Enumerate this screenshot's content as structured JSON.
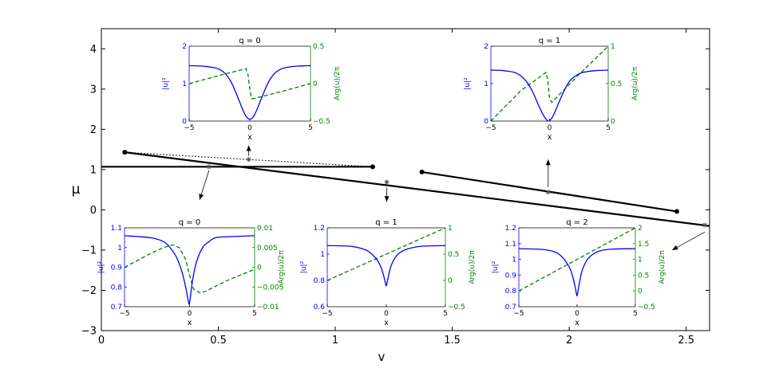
{
  "figure": {
    "ylabel": "μ",
    "xlabel": "v"
  },
  "chart_data": [
    {
      "id": "main",
      "type": "line",
      "xlabel": "v",
      "ylabel": "μ",
      "xlim": [
        0,
        2.6
      ],
      "ylim": [
        -3,
        4.5
      ],
      "xticks": [
        0,
        0.5,
        1,
        1.5,
        2,
        2.5
      ],
      "xtick_labels": [
        "0",
        "0.5",
        "1",
        "1.5",
        "2",
        "2.5"
      ],
      "yticks": [
        -3,
        -2,
        -1,
        0,
        1,
        2,
        3,
        4
      ],
      "ytick_labels": [
        "−3",
        "−2",
        "−1",
        "0",
        "1",
        "2",
        "3",
        "4"
      ],
      "grid": false,
      "series": [
        {
          "style": "solid",
          "color": "#000000",
          "points": [
            [
              0,
              1.07
            ],
            [
              1.16,
              1.07
            ]
          ],
          "end_markers": [
            [
              1.16,
              1.07
            ]
          ]
        },
        {
          "style": "solid",
          "color": "#000000",
          "points": [
            [
              0.1,
              1.43
            ],
            [
              2.6,
              -0.4
            ]
          ],
          "end_markers": [
            [
              0.1,
              1.43
            ]
          ]
        },
        {
          "style": "solid",
          "color": "#000000",
          "points": [
            [
              1.37,
              0.94
            ],
            [
              2.46,
              -0.04
            ]
          ],
          "end_markers": [
            [
              1.37,
              0.94
            ],
            [
              2.46,
              -0.04
            ]
          ]
        },
        {
          "style": "dotted",
          "color": "#000000",
          "points": [
            [
              0.1,
              1.43
            ],
            [
              0.63,
              1.25
            ],
            [
              1.16,
              1.07
            ]
          ]
        },
        {
          "style": "dotted",
          "color": "#000000",
          "points": [
            [
              1.37,
              0.94
            ],
            [
              1.91,
              0.44
            ],
            [
              2.46,
              -0.04
            ]
          ]
        }
      ],
      "star_markers": [
        [
          0.46,
          1.07
        ],
        [
          0.63,
          1.25
        ],
        [
          1.22,
          0.69
        ],
        [
          1.91,
          0.44
        ],
        [
          2.58,
          -0.38
        ]
      ],
      "arrows": [
        {
          "from": [
            0.46,
            0.98
          ],
          "to": [
            0.42,
            0.25
          ]
        },
        {
          "from": [
            0.63,
            1.34
          ],
          "to": [
            0.63,
            1.6
          ]
        },
        {
          "from": [
            1.22,
            0.55
          ],
          "to": [
            1.22,
            0.2
          ]
        },
        {
          "from": [
            1.91,
            0.57
          ],
          "to": [
            1.91,
            1.25
          ]
        },
        {
          "from": [
            2.58,
            -0.55
          ],
          "to": [
            2.44,
            -1.0
          ]
        }
      ]
    },
    {
      "id": "inset-top-left",
      "type": "line",
      "title": "q = 0",
      "xlabel": "x",
      "ylabel_left": "|u|²",
      "ylabel_right": "Arg(u)/2π",
      "xlim": [
        -5,
        5
      ],
      "ylim_left": [
        0,
        2
      ],
      "ylim_right": [
        -0.5,
        0.5
      ],
      "xticks": [
        -5,
        0,
        5
      ],
      "xtick_labels": [
        "−5",
        "0",
        "5"
      ],
      "yticks_left": [
        0,
        1,
        2
      ],
      "ytick_left_labels": [
        "0",
        "1",
        "2"
      ],
      "yticks_right": [
        -0.5,
        0,
        0.5
      ],
      "ytick_right_labels": [
        "−0.5",
        "0",
        "0.5"
      ],
      "amplitude": {
        "color": "#0000ff",
        "x": [
          -5,
          -4,
          -3,
          -2.5,
          -2,
          -1.5,
          -1,
          -0.6,
          -0.3,
          0,
          0.3,
          0.6,
          1,
          1.5,
          2,
          2.5,
          3,
          4,
          5
        ],
        "y": [
          1.48,
          1.47,
          1.43,
          1.38,
          1.26,
          1.02,
          0.64,
          0.32,
          0.12,
          0.05,
          0.12,
          0.32,
          0.64,
          1.02,
          1.26,
          1.38,
          1.43,
          1.47,
          1.48
        ]
      },
      "phase": {
        "color": "#008000",
        "style": "dashed",
        "x": [
          -5,
          -2.5,
          -0.3,
          -0.15,
          0,
          0.15,
          0.3,
          2.5,
          5
        ],
        "y": [
          0.0,
          0.11,
          0.2,
          0.12,
          -0.08,
          -0.2,
          -0.2,
          -0.11,
          0.0
        ]
      }
    },
    {
      "id": "inset-top-right",
      "type": "line",
      "title": "q = 1",
      "xlabel": "x",
      "ylabel_left": "|u|²",
      "ylabel_right": "Arg(u)/2π",
      "xlim": [
        -5,
        5
      ],
      "ylim_left": [
        0,
        2
      ],
      "ylim_right": [
        0,
        1
      ],
      "xticks": [
        -5,
        0,
        5
      ],
      "xtick_labels": [
        "−5",
        "0",
        "5"
      ],
      "yticks_left": [
        0,
        1,
        2
      ],
      "ytick_left_labels": [
        "0",
        "1",
        "2"
      ],
      "yticks_right": [
        0,
        0.5,
        1
      ],
      "ytick_right_labels": [
        "0",
        "0.5",
        "1"
      ],
      "amplitude": {
        "color": "#0000ff",
        "x": [
          -5,
          -4,
          -3,
          -2.5,
          -2,
          -1.5,
          -1,
          -0.6,
          -0.3,
          -0.1,
          0.1,
          0.4,
          0.8,
          1.3,
          1.8,
          2.5,
          3,
          4,
          5
        ],
        "y": [
          1.36,
          1.35,
          1.3,
          1.22,
          1.07,
          0.82,
          0.47,
          0.2,
          0.05,
          0.0,
          0.04,
          0.2,
          0.5,
          0.85,
          1.1,
          1.26,
          1.31,
          1.35,
          1.36
        ]
      },
      "phase": {
        "color": "#008000",
        "style": "dashed",
        "x": [
          -5,
          -2.5,
          -0.3,
          -0.15,
          0,
          0.2,
          0.5,
          2.5,
          5
        ],
        "y": [
          0.0,
          0.4,
          0.65,
          0.55,
          0.3,
          0.25,
          0.3,
          0.62,
          1.0
        ]
      }
    },
    {
      "id": "inset-bottom-left",
      "type": "line",
      "title": "q = 0",
      "xlabel": "x",
      "ylabel_left": "|u|²",
      "ylabel_right": "Arg(u)/2π",
      "xlim": [
        -5,
        5
      ],
      "ylim_left": [
        0.7,
        1.1
      ],
      "ylim_right": [
        -0.01,
        0.01
      ],
      "xticks": [
        -5,
        0,
        5
      ],
      "xtick_labels": [
        "−5",
        "0",
        "5"
      ],
      "yticks_left": [
        0.7,
        0.8,
        0.9,
        1,
        1.1
      ],
      "ytick_left_labels": [
        "0.7",
        "0.8",
        "0.9",
        "1",
        "1.1"
      ],
      "yticks_right": [
        -0.01,
        -0.005,
        0,
        0.005,
        0.01
      ],
      "ytick_right_labels": [
        "−0.01",
        "−0.005",
        "0",
        "0.005",
        "0.01"
      ],
      "amplitude": {
        "color": "#0000ff",
        "x": [
          -5,
          -3,
          -2,
          -1.5,
          -1,
          -0.6,
          -0.3,
          -0.1,
          0,
          0.2,
          0.5,
          1,
          1.5,
          2,
          3,
          5
        ],
        "y": [
          1.06,
          1.05,
          1.03,
          1.0,
          0.95,
          0.88,
          0.8,
          0.73,
          0.72,
          0.82,
          0.92,
          1.0,
          1.03,
          1.05,
          1.055,
          1.06
        ]
      },
      "phase": {
        "color": "#008000",
        "style": "dashed",
        "x": [
          -5,
          -3,
          -2,
          -1.3,
          -0.8,
          -0.3,
          0,
          0.3,
          0.8,
          1.3,
          2,
          3,
          5
        ],
        "y": [
          0.0,
          0.0035,
          0.005,
          0.0057,
          0.005,
          0.002,
          -0.002,
          -0.0055,
          -0.0065,
          -0.006,
          -0.0048,
          -0.0032,
          -0.0005
        ]
      }
    },
    {
      "id": "inset-bottom-middle",
      "type": "line",
      "title": "q = 1",
      "xlabel": "x",
      "ylabel_left": "|u|²",
      "ylabel_right": "Arg(u)/2π",
      "xlim": [
        -5,
        5
      ],
      "ylim_left": [
        0.6,
        1.2
      ],
      "ylim_right": [
        -0.5,
        1
      ],
      "xticks": [
        -5,
        0,
        5
      ],
      "xtick_labels": [
        "−5",
        "0",
        "5"
      ],
      "yticks_left": [
        0.6,
        0.8,
        1,
        1.2
      ],
      "ytick_left_labels": [
        "0.6",
        "0.8",
        "1",
        "1.2"
      ],
      "yticks_right": [
        -0.5,
        0,
        0.5,
        1
      ],
      "ytick_right_labels": [
        "−0.5",
        "0",
        "0.5",
        "1"
      ],
      "amplitude": {
        "color": "#0000ff",
        "x": [
          -5,
          -3,
          -2,
          -1.5,
          -1,
          -0.6,
          -0.3,
          -0.1,
          0,
          0.15,
          0.4,
          0.8,
          1.3,
          2,
          3,
          5
        ],
        "y": [
          1.065,
          1.06,
          1.04,
          1.02,
          0.98,
          0.93,
          0.86,
          0.79,
          0.76,
          0.82,
          0.91,
          0.98,
          1.02,
          1.045,
          1.06,
          1.065
        ]
      },
      "phase": {
        "color": "#008000",
        "style": "dashed",
        "x": [
          -5,
          5
        ],
        "y": [
          0.0,
          1.0
        ]
      }
    },
    {
      "id": "inset-bottom-right",
      "type": "line",
      "title": "q = 2",
      "xlabel": "x",
      "ylabel_left": "|u|²",
      "ylabel_right": "Arg(u)/2π",
      "xlim": [
        -5,
        5
      ],
      "ylim_left": [
        0.7,
        1.2
      ],
      "ylim_right": [
        -0.5,
        2
      ],
      "xticks": [
        -5,
        0,
        5
      ],
      "xtick_labels": [
        "−5",
        "0",
        "5"
      ],
      "yticks_left": [
        0.7,
        0.8,
        0.9,
        1,
        1.1,
        1.2
      ],
      "ytick_left_labels": [
        "0.7",
        "0.8",
        "0.9",
        "1",
        "1.1",
        "1.2"
      ],
      "yticks_right": [
        -0.5,
        0,
        0.5,
        1,
        1.5,
        2
      ],
      "ytick_right_labels": [
        "−0.5",
        "0",
        "0.5",
        "1",
        "1.5",
        "2"
      ],
      "amplitude": {
        "color": "#0000ff",
        "x": [
          -5,
          -3,
          -2,
          -1.5,
          -1,
          -0.6,
          -0.3,
          -0.1,
          0,
          0.15,
          0.4,
          0.8,
          1.3,
          2,
          3,
          5
        ],
        "y": [
          1.068,
          1.063,
          1.05,
          1.03,
          0.99,
          0.94,
          0.87,
          0.8,
          0.77,
          0.83,
          0.92,
          0.99,
          1.03,
          1.055,
          1.065,
          1.068
        ]
      },
      "phase": {
        "color": "#008000",
        "style": "dashed",
        "x": [
          -5,
          5
        ],
        "y": [
          0.0,
          2.0
        ]
      }
    }
  ]
}
